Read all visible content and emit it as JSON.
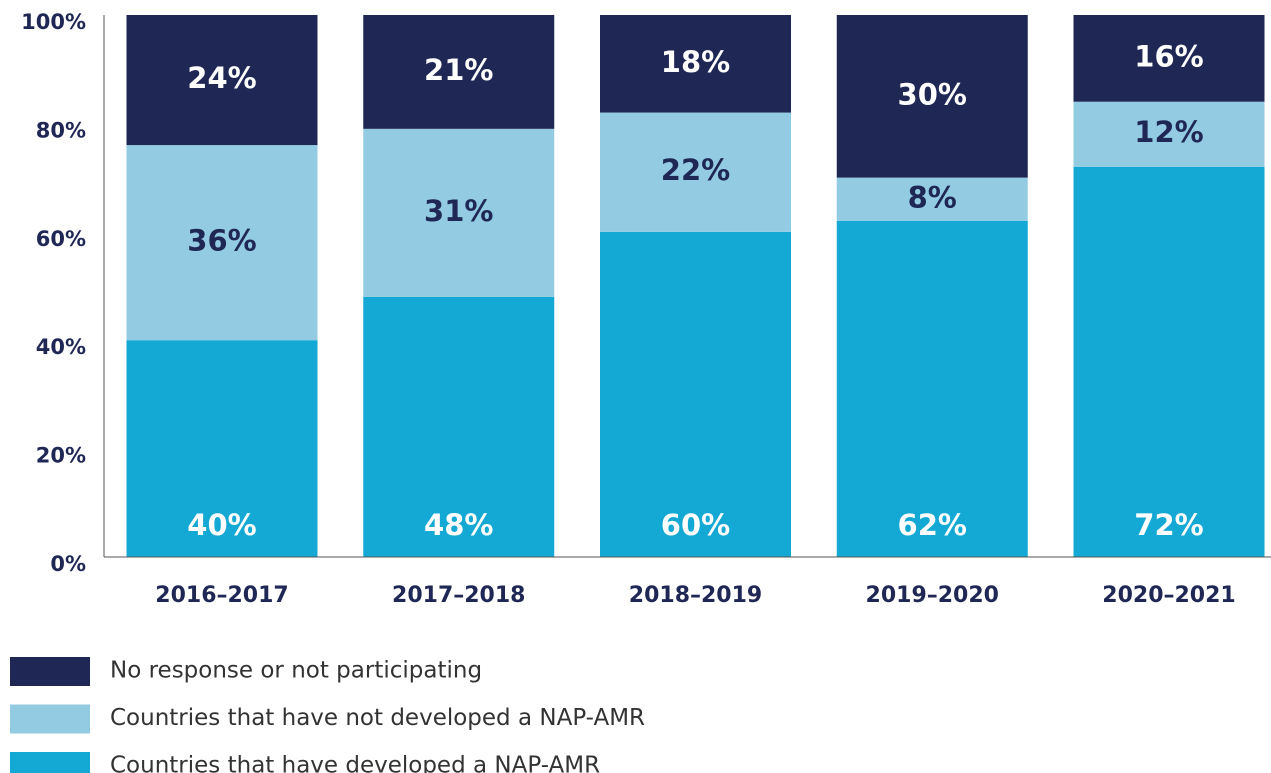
{
  "chart_data": {
    "type": "stacked_bar",
    "categories": [
      "2016–2017",
      "2017–2018",
      "2018–2019",
      "2019–2020",
      "2020–2021"
    ],
    "series": [
      {
        "name": "Countries that have developed a NAP-AMR",
        "color": "#14a8d4",
        "label_color": "#ffffff",
        "values": [
          40,
          48,
          60,
          62,
          72
        ],
        "value_labels": [
          "40%",
          "48%",
          "60%",
          "62%",
          "72%"
        ]
      },
      {
        "name": "Countries that have not developed a NAP-AMR",
        "color": "#93cbe2",
        "label_color": "#1f2754",
        "values": [
          36,
          31,
          22,
          8,
          12
        ],
        "value_labels": [
          "36%",
          "31%",
          "22%",
          "8%",
          "12%"
        ]
      },
      {
        "name": "No response or not participating",
        "color": "#1f2754",
        "label_color": "#ffffff",
        "values": [
          24,
          21,
          18,
          30,
          16
        ],
        "value_labels": [
          "24%",
          "21%",
          "18%",
          "30%",
          "16%"
        ]
      }
    ],
    "ylim": [
      0,
      100
    ],
    "yticks": [
      {
        "value": 0,
        "label": "0%"
      },
      {
        "value": 20,
        "label": "20%"
      },
      {
        "value": 40,
        "label": "40%"
      },
      {
        "value": 60,
        "label": "60%"
      },
      {
        "value": 80,
        "label": "80%"
      },
      {
        "value": 100,
        "label": "100%"
      }
    ],
    "grid": false,
    "legend": "bottom-left"
  }
}
